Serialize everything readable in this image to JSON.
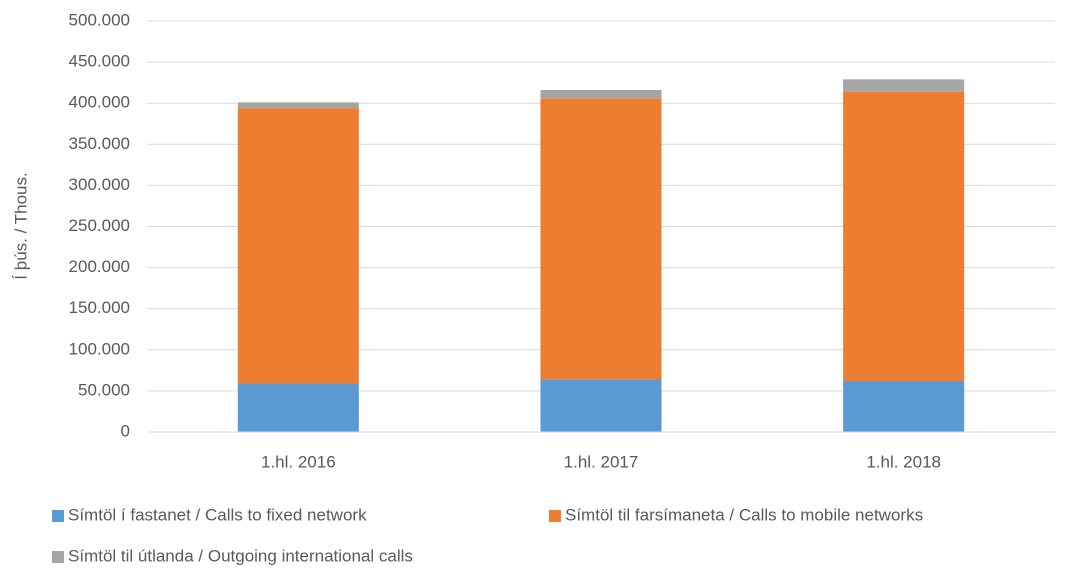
{
  "chart_data": {
    "type": "stacked_bar",
    "y_label": "Í þús. / Thous.",
    "categories": [
      "1.hl. 2016",
      "1.hl. 2017",
      "1.hl. 2018"
    ],
    "series": [
      {
        "name": "Símtöl í fastanet / Calls to fixed network",
        "color": "#5b9bd5",
        "values": [
          59000,
          64000,
          62000
        ]
      },
      {
        "name": "Símtöl til farsímaneta / Calls to mobile networks",
        "color": "#ed7d31",
        "values": [
          335000,
          342000,
          352000
        ]
      },
      {
        "name": "Símtöl til útlanda / Outgoing international calls",
        "color": "#a5a5a5",
        "values": [
          7000,
          10000,
          15000
        ]
      }
    ],
    "ylim": [
      0,
      500000
    ],
    "yticks": [
      0,
      {
        "value": 50000,
        "label": "50.000"
      },
      {
        "value": 100000,
        "label": "100.000"
      },
      {
        "value": 150000,
        "label": "150.000"
      },
      {
        "value": 200000,
        "label": "200.000"
      },
      {
        "value": 250000,
        "label": "250.000"
      },
      {
        "value": 300000,
        "label": "300.000"
      },
      {
        "value": 350000,
        "label": "350.000"
      },
      {
        "value": 400000,
        "label": "400.000"
      },
      {
        "value": 450000,
        "label": "450.000"
      },
      {
        "value": 500000,
        "label": "500.000"
      }
    ],
    "grid": true
  }
}
